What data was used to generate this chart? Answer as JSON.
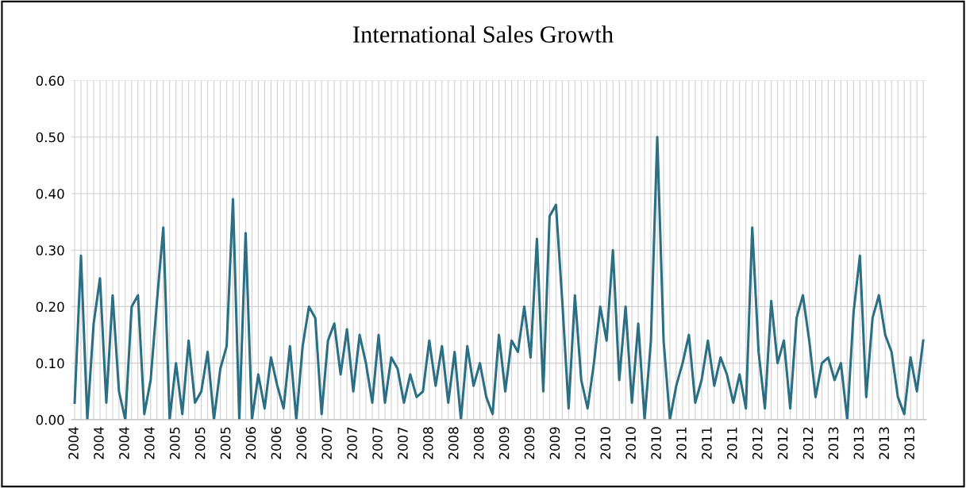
{
  "chart_data": {
    "type": "line",
    "title": "International Sales Growth",
    "categories": [
      "2004",
      null,
      null,
      null,
      "2004",
      null,
      null,
      null,
      "2004",
      null,
      null,
      null,
      "2004",
      null,
      null,
      null,
      "2005",
      null,
      null,
      null,
      "2005",
      null,
      null,
      null,
      "2005",
      null,
      null,
      null,
      "2006",
      null,
      null,
      null,
      "2006",
      null,
      null,
      null,
      "2006",
      null,
      null,
      null,
      "2007",
      null,
      null,
      null,
      "2007",
      null,
      null,
      null,
      "2007",
      null,
      null,
      null,
      "2007",
      null,
      null,
      null,
      "2008",
      null,
      null,
      null,
      "2008",
      null,
      null,
      null,
      "2008",
      null,
      null,
      null,
      "2009",
      null,
      null,
      null,
      "2009",
      null,
      null,
      null,
      "2009",
      null,
      null,
      null,
      "2010",
      null,
      null,
      null,
      "2010",
      null,
      null,
      null,
      "2010",
      null,
      null,
      null,
      "2010",
      null,
      null,
      null,
      "2011",
      null,
      null,
      null,
      "2011",
      null,
      null,
      null,
      "2011",
      null,
      null,
      null,
      "2012",
      null,
      null,
      null,
      "2012",
      null,
      null,
      null,
      "2012",
      null,
      null,
      null,
      "2013",
      null,
      null,
      null,
      "2013",
      null,
      null,
      null,
      "2013",
      null,
      null,
      null,
      "2013",
      null,
      null
    ],
    "series": [
      {
        "color": "#2a6f84",
        "values": [
          0.03,
          0.29,
          0.0,
          0.17,
          0.25,
          0.03,
          0.22,
          0.05,
          0.0,
          0.2,
          0.22,
          0.01,
          0.07,
          0.21,
          0.34,
          0.0,
          0.1,
          0.01,
          0.14,
          0.03,
          0.05,
          0.12,
          0.0,
          0.09,
          0.13,
          0.39,
          0.0,
          0.33,
          0.0,
          0.08,
          0.02,
          0.11,
          0.06,
          0.02,
          0.13,
          0.0,
          0.13,
          0.2,
          0.18,
          0.01,
          0.14,
          0.17,
          0.08,
          0.16,
          0.05,
          0.15,
          0.1,
          0.03,
          0.15,
          0.03,
          0.11,
          0.09,
          0.03,
          0.08,
          0.04,
          0.05,
          0.14,
          0.06,
          0.13,
          0.03,
          0.12,
          0.0,
          0.13,
          0.06,
          0.1,
          0.04,
          0.01,
          0.15,
          0.05,
          0.14,
          0.12,
          0.2,
          0.11,
          0.32,
          0.05,
          0.36,
          0.38,
          0.21,
          0.02,
          0.22,
          0.07,
          0.02,
          0.1,
          0.2,
          0.14,
          0.3,
          0.07,
          0.2,
          0.03,
          0.17,
          0.0,
          0.14,
          0.5,
          0.14,
          0.0,
          0.06,
          0.1,
          0.15,
          0.03,
          0.07,
          0.14,
          0.06,
          0.11,
          0.08,
          0.03,
          0.08,
          0.02,
          0.34,
          0.12,
          0.02,
          0.21,
          0.1,
          0.14,
          0.02,
          0.18,
          0.22,
          0.14,
          0.04,
          0.1,
          0.11,
          0.07,
          0.1,
          0.0,
          0.19,
          0.29,
          0.04,
          0.18,
          0.22,
          0.15,
          0.12,
          0.04,
          0.01,
          0.11,
          0.05,
          0.14
        ]
      }
    ],
    "ylim": [
      0,
      0.6
    ],
    "yticks": [
      {
        "value": 0,
        "label": "0.00"
      },
      {
        "value": 0.1,
        "label": "0.10"
      },
      {
        "value": 0.2,
        "label": "0.20"
      },
      {
        "value": 0.3,
        "label": "0.30"
      },
      {
        "value": 0.4,
        "label": "0.40"
      },
      {
        "value": 0.5,
        "label": "0.50"
      },
      {
        "value": 0.6,
        "label": "0.60"
      }
    ],
    "grid": true,
    "marker": "none",
    "line_style": "solid"
  }
}
